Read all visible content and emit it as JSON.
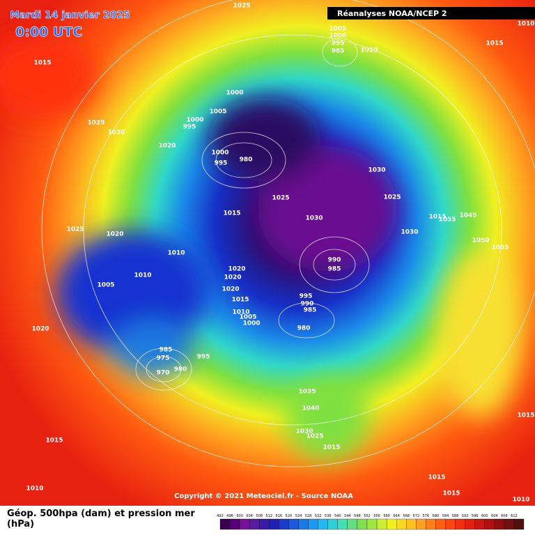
{
  "header": {
    "date": "Mardi 14 janvier 2025",
    "time": "0:00 UTC",
    "source": "Réanalyses NOAA/NCEP 2"
  },
  "footer": {
    "legend": "Géop. 500hpa (dam) et pression mer (hPa)",
    "copyright": "Copyright © 2021 Meteociel.fr - Source NOAA"
  },
  "colorbar": {
    "ticks": [
      "492",
      "496",
      "500",
      "504",
      "508",
      "512",
      "516",
      "520",
      "524",
      "528",
      "532",
      "536",
      "540",
      "544",
      "548",
      "552",
      "556",
      "560",
      "564",
      "568",
      "572",
      "576",
      "580",
      "584",
      "588",
      "592",
      "596",
      "600",
      "604",
      "608",
      "612"
    ]
  },
  "isobar_labels": [
    "1025",
    "1010",
    "1015",
    "1005",
    "1000",
    "995",
    "985",
    "1010",
    "1015",
    "1000",
    "1005",
    "1000",
    "995",
    "1025",
    "1030",
    "1020",
    "1000",
    "980",
    "995",
    "1015",
    "1025",
    "1030",
    "1025",
    "1025",
    "1020",
    "1030",
    "1015",
    "1055",
    "1045",
    "1050",
    "1055",
    "1010",
    "1010",
    "1005",
    "990",
    "985",
    "1020",
    "1020",
    "1020",
    "1015",
    "995",
    "990",
    "985",
    "980",
    "1010",
    "1005",
    "1000",
    "985",
    "975",
    "970",
    "980",
    "995",
    "1020",
    "1030",
    "1035",
    "1040",
    "1030",
    "1025",
    "1015",
    "1015",
    "1015",
    "1010",
    "1010",
    "1015",
    "1015"
  ]
}
